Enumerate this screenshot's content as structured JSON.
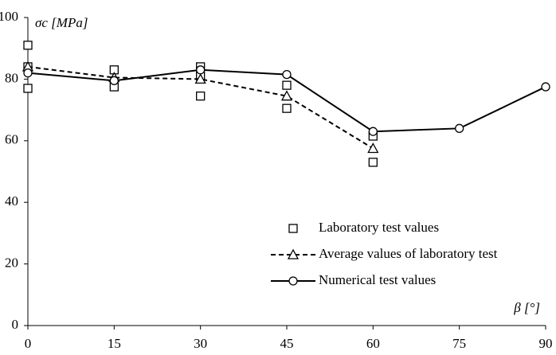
{
  "chart_data": {
    "type": "line",
    "x_label": "β [°]",
    "y_label": "σc [MPa]",
    "xlim": [
      0,
      90
    ],
    "xticks": [
      0,
      15,
      30,
      45,
      60,
      75,
      90
    ],
    "ylim": [
      0,
      100
    ],
    "yticks": [
      0,
      20,
      40,
      60,
      80,
      100
    ],
    "grid": false,
    "legend": "lower right",
    "series": [
      {
        "name": "Laboratory test values",
        "color": "#000000",
        "marker": "square",
        "line": "none",
        "x": [
          0,
          0,
          0,
          15,
          15,
          30,
          30,
          30,
          45,
          45,
          60,
          60
        ],
        "values": [
          91,
          84,
          77,
          83,
          77.5,
          84,
          81,
          74.5,
          78,
          70.5,
          61.5,
          53
        ]
      },
      {
        "name": "Average values of laboratory test",
        "color": "#000000",
        "marker": "triangle",
        "line": "dashed",
        "x": [
          0,
          15,
          30,
          45,
          60
        ],
        "values": [
          84,
          80.5,
          80,
          74.5,
          57.5
        ]
      },
      {
        "name": "Numerical test values",
        "color": "#000000",
        "marker": "circle",
        "line": "solid",
        "x": [
          0,
          15,
          30,
          45,
          60,
          75,
          90
        ],
        "values": [
          82,
          79.5,
          83,
          81.5,
          63,
          64,
          77.5
        ]
      }
    ]
  }
}
